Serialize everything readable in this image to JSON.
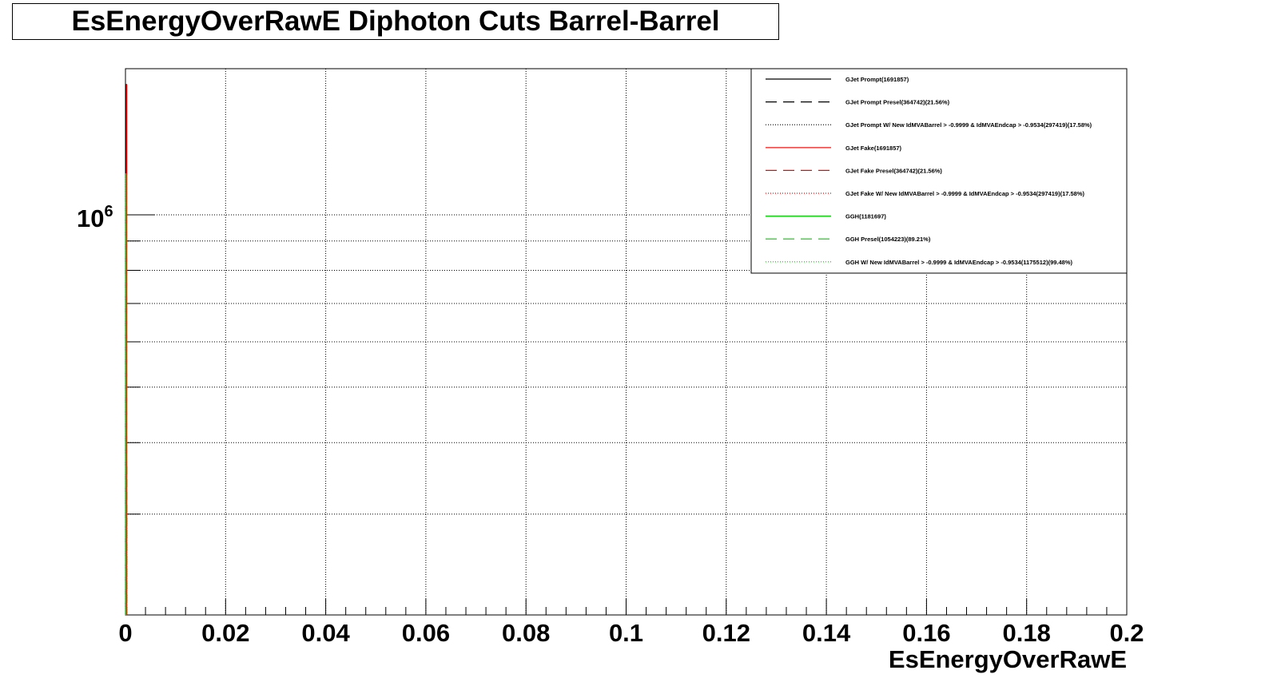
{
  "chart_data": {
    "type": "line",
    "title": "EsEnergyOverRawE Diphoton Cuts Barrel-Barrel",
    "xlabel": "EsEnergyOverRawE",
    "ylabel": "",
    "xlim": [
      0,
      0.2
    ],
    "ylim": [
      200000,
      1800000
    ],
    "log_y": true,
    "grid": true,
    "legend_position": "top-right",
    "x_ticks": [
      0,
      0.02,
      0.04,
      0.06,
      0.08,
      0.1,
      0.12,
      0.14,
      0.16,
      0.18,
      0.2
    ],
    "x_tick_labels": [
      "0",
      "0.02",
      "0.04",
      "0.06",
      "0.08",
      "0.1",
      "0.12",
      "0.14",
      "0.16",
      "0.18",
      "0.2"
    ],
    "y_major_ticks": [
      {
        "value": 1000000,
        "base": "10",
        "exponent": "6"
      }
    ],
    "y_minor_ticks": [
      200000,
      300000,
      400000,
      500000,
      600000,
      700000,
      800000,
      900000
    ],
    "series": [
      {
        "name": "GJet Prompt(1691857)",
        "color": "#000000",
        "dash": "solid",
        "x": [
          0
        ],
        "y": [
          1691857
        ]
      },
      {
        "name": "GJet Prompt Presel(364742)(21.56%)",
        "color": "#000000",
        "dash": "dashed",
        "x": [
          0
        ],
        "y": [
          364742
        ]
      },
      {
        "name": "GJet Prompt W/ New IdMVABarrel > -0.9999 & IdMVAEndcap > -0.9534(297419)(17.58%)",
        "color": "#000000",
        "dash": "dotted",
        "x": [
          0
        ],
        "y": [
          297419
        ]
      },
      {
        "name": "GJet Fake(1691857)",
        "color": "#ff0000",
        "dash": "solid",
        "x": [
          0
        ],
        "y": [
          1691857
        ]
      },
      {
        "name": "GJet Fake Presel(364742)(21.56%)",
        "color": "#ff0000",
        "dash": "dashed",
        "x": [
          0
        ],
        "y": [
          364742
        ]
      },
      {
        "name": "GJet Fake W/ New IdMVABarrel > -0.9999 & IdMVAEndcap > -0.9534(297419)(17.58%)",
        "color": "#ff0000",
        "dash": "dotted",
        "x": [
          0
        ],
        "y": [
          297419
        ]
      },
      {
        "name": "GGH(1181697)",
        "color": "#00cc00",
        "dash": "solid",
        "x": [
          0
        ],
        "y": [
          1181697
        ]
      },
      {
        "name": "GGH Presel(1054223)(89.21%)",
        "color": "#00cc00",
        "dash": "dashed",
        "x": [
          0
        ],
        "y": [
          1054223
        ]
      },
      {
        "name": "GGH W/ New IdMVABarrel > -0.9999 & IdMVAEndcap > -0.9534(1175512)(99.48%)",
        "color": "#00cc00",
        "dash": "dotted",
        "x": [
          0
        ],
        "y": [
          1175512
        ]
      }
    ]
  }
}
